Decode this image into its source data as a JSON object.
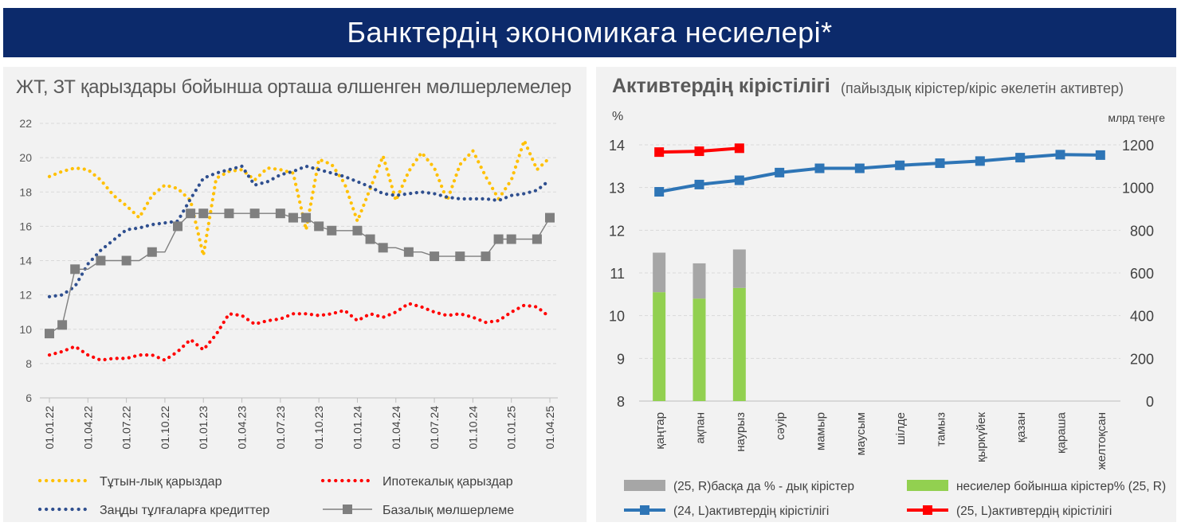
{
  "banner": {
    "title": "Банктердің экономикаға несиелері*"
  },
  "colors": {
    "banner_bg": "#0c2a6b",
    "consumer": "#ffc000",
    "mortgage": "#ff0000",
    "corporate": "#2f4f8f",
    "base_rate": "#7f7f7f",
    "other_income": "#a6a6a6",
    "loan_income": "#92d050",
    "yield24": "#2e75b6",
    "yield25": "#ff0000"
  },
  "left_panel": {
    "title": "ЖТ, ЗТ қарыздары бойынша орташа өлшенген мөлшерлемелер"
  },
  "right_panel": {
    "title": "Активтердің кірістілігі",
    "subtitle": "(пайыздық кірістер/кіріс әкелетін активтер)",
    "left_unit": "%",
    "right_unit": "млрд теңге"
  },
  "chart_data": [
    {
      "type": "line",
      "title": "ЖТ, ЗТ қарыздары бойынша орташа өлшенген мөлшерлемелер",
      "ylim": [
        6,
        22
      ],
      "y_ticks": [
        "6",
        "8",
        "10",
        "12",
        "14",
        "16",
        "18",
        "20",
        "22"
      ],
      "x_tick_labels": [
        "01.01.22",
        "01.04.22",
        "01.07.22",
        "01.10.22",
        "01.01.23",
        "01.04.23",
        "01.07.23",
        "01.10.23",
        "01.01.24",
        "01.04.24",
        "01.07.24",
        "01.10.24",
        "01.01.25",
        "01.04.25"
      ],
      "months": 40,
      "grid": true,
      "legend_position": "bottom",
      "series": [
        {
          "name": "Тұтын-лық қарыздар",
          "style": "dotted",
          "color": "#ffc000",
          "values": [
            18.9,
            19.2,
            19.4,
            19.3,
            18.7,
            17.8,
            17.2,
            16.5,
            17.8,
            18.4,
            18.2,
            17.5,
            14.3,
            18.8,
            19.2,
            19.3,
            18.7,
            19.4,
            19.3,
            19.1,
            15.8,
            19.9,
            19.6,
            18.5,
            16.3,
            18.2,
            20.1,
            17.5,
            19.2,
            20.3,
            19.4,
            17.5,
            19.6,
            20.4,
            18.9,
            17.6,
            18.7,
            21.0,
            19.3,
            20.0
          ]
        },
        {
          "name": "Ипотекалық қарыздар",
          "style": "dotted",
          "color": "#ff0000",
          "values": [
            8.5,
            8.7,
            9.0,
            8.5,
            8.2,
            8.3,
            8.3,
            8.5,
            8.5,
            8.2,
            8.7,
            9.4,
            8.8,
            9.7,
            10.9,
            10.8,
            10.3,
            10.5,
            10.6,
            10.9,
            10.9,
            10.8,
            10.9,
            11.1,
            10.5,
            10.9,
            10.7,
            11.0,
            11.5,
            11.3,
            11.0,
            10.8,
            10.9,
            10.7,
            10.4,
            10.5,
            11.0,
            11.4,
            11.3,
            10.7
          ]
        },
        {
          "name": "Заңды тұлғаларға кредиттер",
          "style": "dotted",
          "color": "#2f4f8f",
          "values": [
            11.9,
            12.0,
            12.5,
            13.8,
            14.6,
            15.2,
            15.8,
            15.9,
            16.1,
            16.2,
            16.3,
            17.6,
            18.8,
            19.1,
            19.3,
            19.5,
            18.4,
            18.6,
            19.0,
            19.2,
            19.5,
            19.3,
            19.1,
            18.9,
            18.6,
            18.3,
            17.9,
            17.8,
            17.9,
            18.0,
            17.9,
            17.7,
            17.6,
            17.6,
            17.6,
            17.5,
            17.8,
            17.9,
            18.1,
            18.7
          ]
        },
        {
          "name": "Базалық мөлшерлеме",
          "style": "solid-square",
          "color": "#7f7f7f",
          "values": [
            9.75,
            10.25,
            13.5,
            13.5,
            14.0,
            14.0,
            14.0,
            14.0,
            14.5,
            14.5,
            16.0,
            16.75,
            16.75,
            16.75,
            16.75,
            16.75,
            16.75,
            16.75,
            16.75,
            16.5,
            16.5,
            16.0,
            15.75,
            15.75,
            15.75,
            15.25,
            14.75,
            14.75,
            14.5,
            14.5,
            14.25,
            14.25,
            14.25,
            14.25,
            14.25,
            15.25,
            15.25,
            15.25,
            15.25,
            16.5
          ]
        }
      ]
    },
    {
      "type": "bar+line",
      "title": "Активтердің кірістілігі",
      "categories": [
        "қаңтар",
        "ақпан",
        "наурыз",
        "сәуір",
        "мамыр",
        "маусым",
        "шілде",
        "тамыз",
        "қыркүйек",
        "қазан",
        "қараша",
        "желтоқсан"
      ],
      "left_axis": {
        "unit": "%",
        "ylim": [
          8,
          14
        ],
        "ticks": [
          "8",
          "9",
          "10",
          "11",
          "12",
          "13",
          "14"
        ]
      },
      "right_axis": {
        "unit": "млрд теңге",
        "ylim": [
          0,
          1200
        ],
        "ticks": [
          "0",
          "200",
          "400",
          "600",
          "800",
          "1000",
          "1200"
        ]
      },
      "grid": true,
      "legend_position": "bottom",
      "bars_stacked": [
        {
          "name": "(25, R)басқа да % - дық кірістер",
          "color": "#a6a6a6",
          "values": [
            185,
            165,
            180,
            null,
            null,
            null,
            null,
            null,
            null,
            null,
            null,
            null
          ]
        },
        {
          "name": "несиелер бойынша кірістер% (25, R)",
          "color": "#92d050",
          "values": [
            510,
            480,
            530,
            null,
            null,
            null,
            null,
            null,
            null,
            null,
            null,
            null
          ]
        }
      ],
      "lines": [
        {
          "name": "(24, L)активтердің кірістілігі",
          "axis": "left",
          "color": "#2e75b6",
          "values": [
            12.9,
            13.07,
            13.17,
            13.35,
            13.45,
            13.45,
            13.52,
            13.57,
            13.62,
            13.7,
            13.77,
            13.76
          ]
        },
        {
          "name": "(25, L)активтердің кірістілігі",
          "axis": "left",
          "color": "#ff0000",
          "values": [
            13.83,
            13.85,
            13.92,
            null,
            null,
            null,
            null,
            null,
            null,
            null,
            null,
            null
          ]
        }
      ]
    }
  ]
}
